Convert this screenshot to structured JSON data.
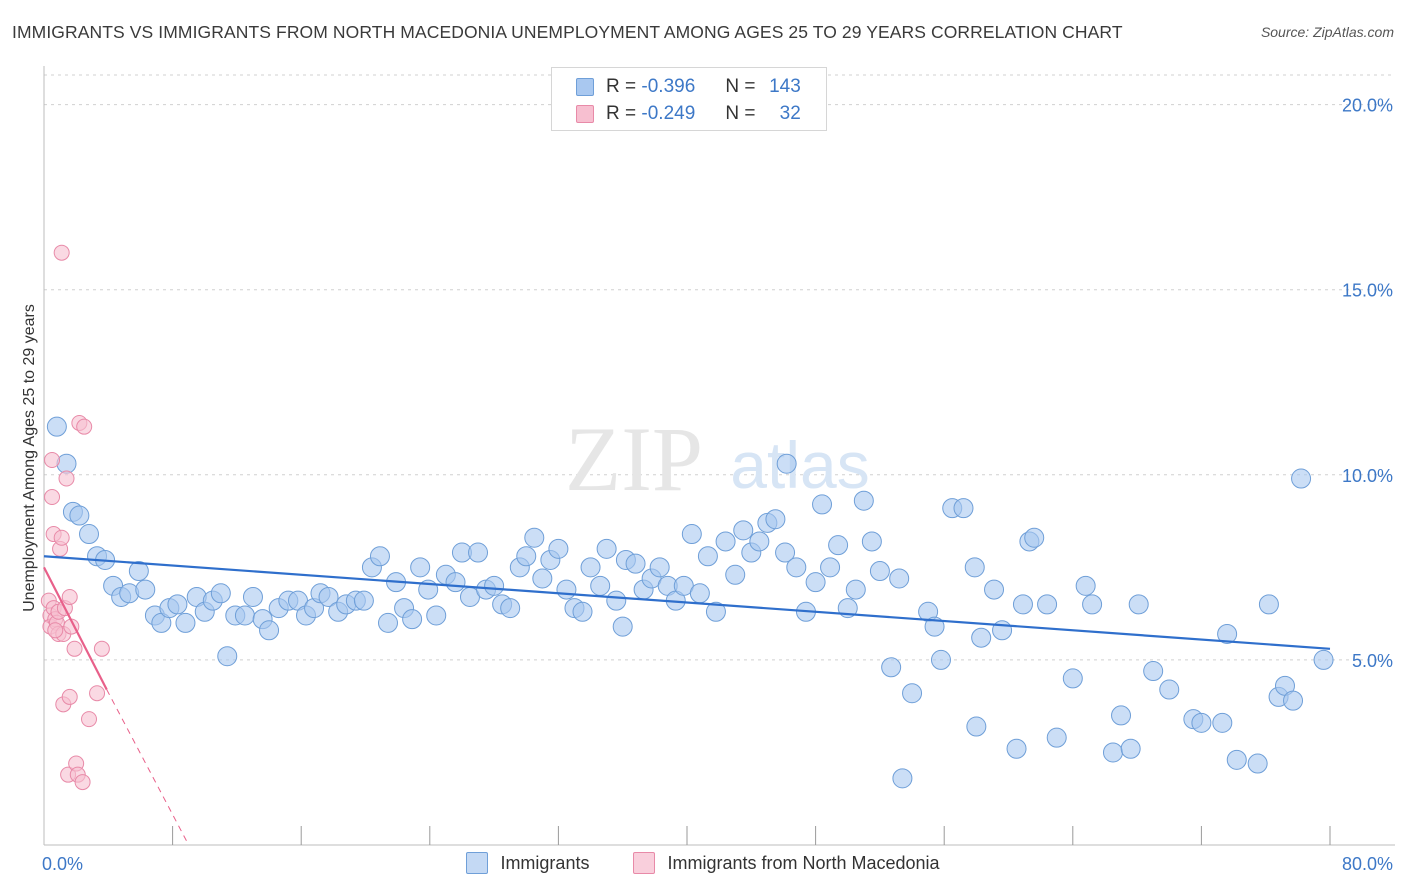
{
  "header": {
    "title": "IMMIGRANTS VS IMMIGRANTS FROM NORTH MACEDONIA UNEMPLOYMENT AMONG AGES 25 TO 29 YEARS CORRELATION CHART",
    "source": "Source: ZipAtlas.com"
  },
  "legend": {
    "r_label": "R =",
    "n_label": "N =",
    "rows": [
      {
        "name": "Immigrants",
        "r": "-0.396",
        "n": "143",
        "fill": "#a9c8f0",
        "stroke": "#6f9fd8"
      },
      {
        "name": "Immigrants from North Macedonia",
        "r": "-0.249",
        "n": "32",
        "fill": "#f7bfd0",
        "stroke": "#e88aa8"
      }
    ]
  },
  "watermark": {
    "zip": "ZIP",
    "atlas": "atlas"
  },
  "colors": {
    "blue_point": "#a9c8f0",
    "blue_stroke": "#6f9fd8",
    "blue_line": "#2f6fcc",
    "pink_point": "#f7bfd0",
    "pink_stroke": "#e88aa8",
    "pink_line": "#e8608a",
    "axis_text": "#3d78c7",
    "grid": "#d0d0d0"
  },
  "chart_data": {
    "type": "scatter",
    "title": "IMMIGRANTS VS IMMIGRANTS FROM NORTH MACEDONIA UNEMPLOYMENT AMONG AGES 25 TO 29 YEARS CORRELATION CHART",
    "xlabel": "",
    "ylabel": "Unemployment Among Ages 25 to 29 years",
    "xlim": [
      0,
      80
    ],
    "ylim": [
      0,
      20.8
    ],
    "x_tick_labels": [
      {
        "value": 0,
        "label": "0.0%"
      },
      {
        "value": 80,
        "label": "80.0%"
      }
    ],
    "y_tick_labels": [
      {
        "value": 5,
        "label": "5.0%"
      },
      {
        "value": 10,
        "label": "10.0%"
      },
      {
        "value": 15,
        "label": "15.0%"
      },
      {
        "value": 20,
        "label": "20.0%"
      }
    ],
    "x_minor_ticks": [
      8,
      16,
      24,
      32,
      40,
      48,
      56,
      64,
      72,
      80
    ],
    "grid": true,
    "series": [
      {
        "name": "Immigrants",
        "r": -0.396,
        "n": 143,
        "trend": {
          "x0": 0,
          "y0": 7.8,
          "x1": 80,
          "y1": 5.3
        },
        "points": [
          [
            0.8,
            11.3
          ],
          [
            1.4,
            10.3
          ],
          [
            1.8,
            9.0
          ],
          [
            2.2,
            8.9
          ],
          [
            2.8,
            8.4
          ],
          [
            3.3,
            7.8
          ],
          [
            3.8,
            7.7
          ],
          [
            4.3,
            7.0
          ],
          [
            4.8,
            6.7
          ],
          [
            5.3,
            6.8
          ],
          [
            5.9,
            7.4
          ],
          [
            6.3,
            6.9
          ],
          [
            6.9,
            6.2
          ],
          [
            7.3,
            6.0
          ],
          [
            7.8,
            6.4
          ],
          [
            8.3,
            6.5
          ],
          [
            8.8,
            6.0
          ],
          [
            9.5,
            6.7
          ],
          [
            10.0,
            6.3
          ],
          [
            10.5,
            6.6
          ],
          [
            11.0,
            6.8
          ],
          [
            11.4,
            5.1
          ],
          [
            11.9,
            6.2
          ],
          [
            12.5,
            6.2
          ],
          [
            13.0,
            6.7
          ],
          [
            13.6,
            6.1
          ],
          [
            14.0,
            5.8
          ],
          [
            14.6,
            6.4
          ],
          [
            15.2,
            6.6
          ],
          [
            15.8,
            6.6
          ],
          [
            16.3,
            6.2
          ],
          [
            16.8,
            6.4
          ],
          [
            17.2,
            6.8
          ],
          [
            17.7,
            6.7
          ],
          [
            18.3,
            6.3
          ],
          [
            18.8,
            6.5
          ],
          [
            19.4,
            6.6
          ],
          [
            19.9,
            6.6
          ],
          [
            20.4,
            7.5
          ],
          [
            20.9,
            7.8
          ],
          [
            21.4,
            6.0
          ],
          [
            21.9,
            7.1
          ],
          [
            22.4,
            6.4
          ],
          [
            22.9,
            6.1
          ],
          [
            23.4,
            7.5
          ],
          [
            23.9,
            6.9
          ],
          [
            24.4,
            6.2
          ],
          [
            25.0,
            7.3
          ],
          [
            25.6,
            7.1
          ],
          [
            26.0,
            7.9
          ],
          [
            26.5,
            6.7
          ],
          [
            27.0,
            7.9
          ],
          [
            27.5,
            6.9
          ],
          [
            28.0,
            7.0
          ],
          [
            28.5,
            6.5
          ],
          [
            29.0,
            6.4
          ],
          [
            29.6,
            7.5
          ],
          [
            30.0,
            7.8
          ],
          [
            30.5,
            8.3
          ],
          [
            31.0,
            7.2
          ],
          [
            31.5,
            7.7
          ],
          [
            32.0,
            8.0
          ],
          [
            32.5,
            6.9
          ],
          [
            33.0,
            6.4
          ],
          [
            33.5,
            6.3
          ],
          [
            34.0,
            7.5
          ],
          [
            34.6,
            7.0
          ],
          [
            35.0,
            8.0
          ],
          [
            35.6,
            6.6
          ],
          [
            36.2,
            7.7
          ],
          [
            36.8,
            7.6
          ],
          [
            37.3,
            6.9
          ],
          [
            37.8,
            7.2
          ],
          [
            38.3,
            7.5
          ],
          [
            38.8,
            7.0
          ],
          [
            39.3,
            6.6
          ],
          [
            39.8,
            7.0
          ],
          [
            40.3,
            8.4
          ],
          [
            40.8,
            6.8
          ],
          [
            41.3,
            7.8
          ],
          [
            41.8,
            6.3
          ],
          [
            42.4,
            8.2
          ],
          [
            43.0,
            7.3
          ],
          [
            43.5,
            8.5
          ],
          [
            44.0,
            7.9
          ],
          [
            44.5,
            8.2
          ],
          [
            45.0,
            8.7
          ],
          [
            45.5,
            8.8
          ],
          [
            46.1,
            7.9
          ],
          [
            46.8,
            7.5
          ],
          [
            47.4,
            6.3
          ],
          [
            48.0,
            7.1
          ],
          [
            48.4,
            9.2
          ],
          [
            48.9,
            7.5
          ],
          [
            49.4,
            8.1
          ],
          [
            50.0,
            6.4
          ],
          [
            50.5,
            6.9
          ],
          [
            51.0,
            9.3
          ],
          [
            51.5,
            8.2
          ],
          [
            52.0,
            7.4
          ],
          [
            52.7,
            4.8
          ],
          [
            53.2,
            7.2
          ],
          [
            53.4,
            1.8
          ],
          [
            54.0,
            4.1
          ],
          [
            55.0,
            6.3
          ],
          [
            55.4,
            5.9
          ],
          [
            55.8,
            5.0
          ],
          [
            56.5,
            9.1
          ],
          [
            57.2,
            9.1
          ],
          [
            57.9,
            7.5
          ],
          [
            58.3,
            5.6
          ],
          [
            59.1,
            6.9
          ],
          [
            59.6,
            5.8
          ],
          [
            60.5,
            2.6
          ],
          [
            60.9,
            6.5
          ],
          [
            61.3,
            8.2
          ],
          [
            61.6,
            8.3
          ],
          [
            62.4,
            6.5
          ],
          [
            63.0,
            2.9
          ],
          [
            64.0,
            4.5
          ],
          [
            64.8,
            7.0
          ],
          [
            65.2,
            6.5
          ],
          [
            66.5,
            2.5
          ],
          [
            67.0,
            3.5
          ],
          [
            67.6,
            2.6
          ],
          [
            68.1,
            6.5
          ],
          [
            69.0,
            4.7
          ],
          [
            70.0,
            4.2
          ],
          [
            71.5,
            3.4
          ],
          [
            72.0,
            3.3
          ],
          [
            73.3,
            3.3
          ],
          [
            73.6,
            5.7
          ],
          [
            74.2,
            2.3
          ],
          [
            75.5,
            2.2
          ],
          [
            76.2,
            6.5
          ],
          [
            76.8,
            4.0
          ],
          [
            77.2,
            4.3
          ],
          [
            77.7,
            3.9
          ],
          [
            78.2,
            9.9
          ],
          [
            79.6,
            5.0
          ],
          [
            46.2,
            10.3
          ],
          [
            58.0,
            3.2
          ],
          [
            36.0,
            5.9
          ]
        ]
      },
      {
        "name": "Immigrants from North Macedonia",
        "r": -0.249,
        "n": 32,
        "trend": {
          "x0": 0,
          "y0": 7.5,
          "x1": 3.9,
          "y1": 4.2,
          "dash_to_x": 9.0,
          "dash_to_y": 0.0
        },
        "points": [
          [
            0.3,
            6.6
          ],
          [
            0.4,
            6.2
          ],
          [
            0.4,
            5.9
          ],
          [
            0.5,
            10.4
          ],
          [
            0.5,
            9.4
          ],
          [
            0.6,
            8.4
          ],
          [
            0.6,
            6.4
          ],
          [
            0.7,
            6.1
          ],
          [
            0.8,
            6.0
          ],
          [
            0.9,
            5.7
          ],
          [
            0.9,
            6.3
          ],
          [
            1.0,
            8.0
          ],
          [
            1.1,
            8.3
          ],
          [
            1.1,
            16.0
          ],
          [
            1.2,
            5.7
          ],
          [
            1.2,
            3.8
          ],
          [
            1.3,
            6.4
          ],
          [
            1.4,
            9.9
          ],
          [
            1.5,
            1.9
          ],
          [
            1.6,
            4.0
          ],
          [
            1.6,
            6.7
          ],
          [
            1.7,
            5.9
          ],
          [
            1.9,
            5.3
          ],
          [
            2.0,
            2.2
          ],
          [
            2.1,
            1.9
          ],
          [
            2.2,
            11.4
          ],
          [
            2.4,
            1.7
          ],
          [
            2.5,
            11.3
          ],
          [
            2.8,
            3.4
          ],
          [
            3.3,
            4.1
          ],
          [
            3.6,
            5.3
          ],
          [
            0.7,
            5.8
          ]
        ]
      }
    ]
  }
}
